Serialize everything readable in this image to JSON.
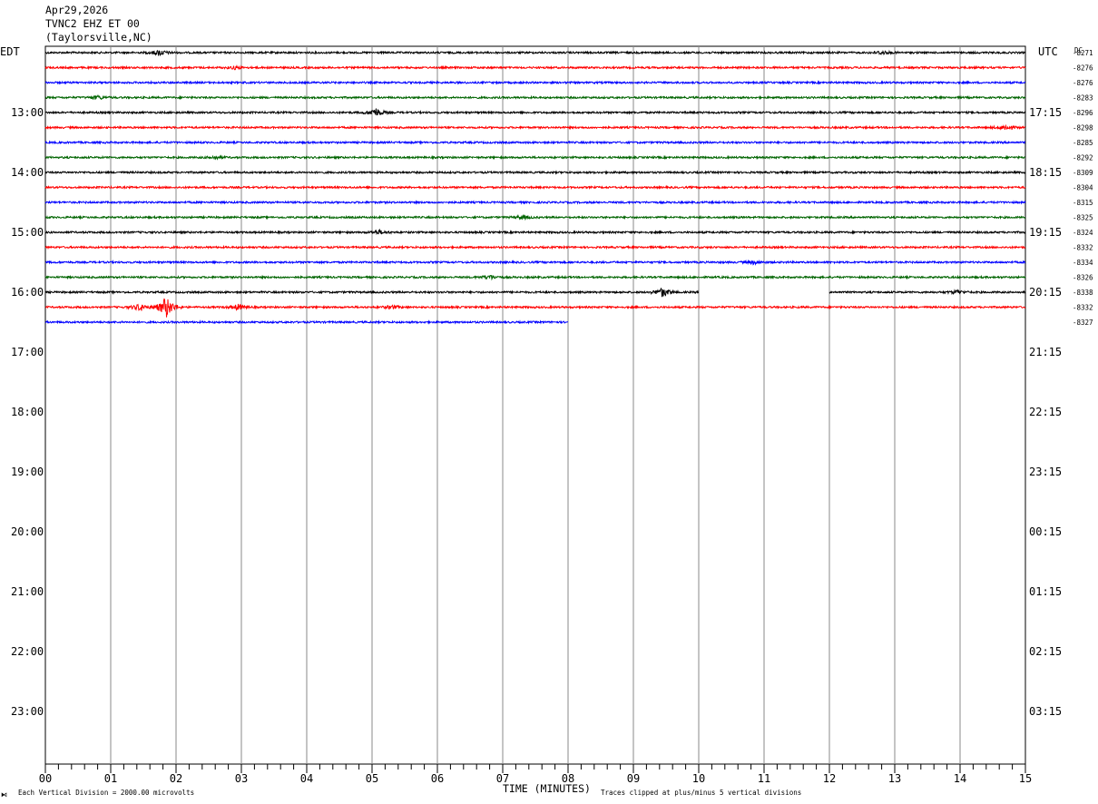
{
  "header": {
    "date": "Apr29,2026",
    "station": "TVNC2 EHZ ET 00",
    "location": "(Taylorsville,NC)"
  },
  "labels": {
    "left_tz": "EDT",
    "right_tz": "UTC",
    "dc_header": "DC",
    "xlabel": "TIME (MINUTES)",
    "scale_note": "Each Vertical Division = 2000.00 microvolts",
    "clip_note": "Traces clipped at plus/minus 5 vertical divisions",
    "corner_mark": "⧑"
  },
  "chart_data": {
    "type": "line",
    "subtype": "helicorder",
    "x_ticks": [
      "00",
      "01",
      "02",
      "03",
      "04",
      "05",
      "06",
      "07",
      "08",
      "09",
      "10",
      "11",
      "12",
      "13",
      "14",
      "15"
    ],
    "x_range_minutes": [
      0,
      15
    ],
    "left_hour_labels": [
      "13:00",
      "14:00",
      "15:00",
      "16:00",
      "17:00",
      "18:00",
      "19:00",
      "20:00",
      "21:00",
      "22:00",
      "23:00"
    ],
    "right_hour_labels": [
      "17:15",
      "18:15",
      "19:15",
      "20:15",
      "21:15",
      "22:15",
      "23:15",
      "00:15",
      "01:15",
      "02:15",
      "03:15"
    ],
    "trace_colors": [
      "#000000",
      "#ff0000",
      "#0000ff",
      "#006400"
    ],
    "dc_offsets": [
      "-8271",
      "-8276",
      "-8276",
      "-8283",
      "-8296",
      "-8298",
      "-8285",
      "-8292",
      "-8309",
      "-8304",
      "-8315",
      "-8325",
      "-8324",
      "-8332",
      "-8334",
      "-8326",
      "-8338",
      "-8332",
      "-8327"
    ],
    "traces": [
      {
        "row": 0,
        "events": [
          {
            "t": 1.75,
            "amp": 3
          },
          {
            "t": 12.8,
            "amp": 2
          }
        ]
      },
      {
        "row": 1,
        "events": [
          {
            "t": 2.9,
            "amp": 1.5
          }
        ]
      },
      {
        "row": 2,
        "events": []
      },
      {
        "row": 3,
        "events": [
          {
            "t": 0.8,
            "amp": 2
          }
        ]
      },
      {
        "row": 4,
        "events": [
          {
            "t": 5.05,
            "amp": 5
          }
        ]
      },
      {
        "row": 5,
        "events": [
          {
            "t": 14.7,
            "amp": 3
          }
        ]
      },
      {
        "row": 6,
        "events": []
      },
      {
        "row": 7,
        "events": [
          {
            "t": 2.6,
            "amp": 1.5
          }
        ]
      },
      {
        "row": 8,
        "events": []
      },
      {
        "row": 9,
        "events": []
      },
      {
        "row": 10,
        "events": []
      },
      {
        "row": 11,
        "events": [
          {
            "t": 7.3,
            "amp": 2
          }
        ]
      },
      {
        "row": 12,
        "events": [
          {
            "t": 5.1,
            "amp": 2
          }
        ]
      },
      {
        "row": 13,
        "events": []
      },
      {
        "row": 14,
        "events": [
          {
            "t": 10.85,
            "amp": 2
          }
        ]
      },
      {
        "row": 15,
        "events": [
          {
            "t": 6.8,
            "amp": 2.5
          }
        ]
      },
      {
        "row": 16,
        "events": [
          {
            "t": 9.45,
            "amp": 5
          },
          {
            "t": 13.95,
            "amp": 2
          }
        ],
        "gaps": [
          [
            10.0,
            12.0
          ]
        ]
      },
      {
        "row": 17,
        "events": [
          {
            "t": 1.45,
            "amp": 4
          },
          {
            "t": 1.85,
            "amp": 12
          },
          {
            "t": 2.95,
            "amp": 3
          },
          {
            "t": 5.3,
            "amp": 2
          }
        ]
      },
      {
        "row": 18,
        "events": [],
        "end_minute": 8.0
      }
    ]
  }
}
